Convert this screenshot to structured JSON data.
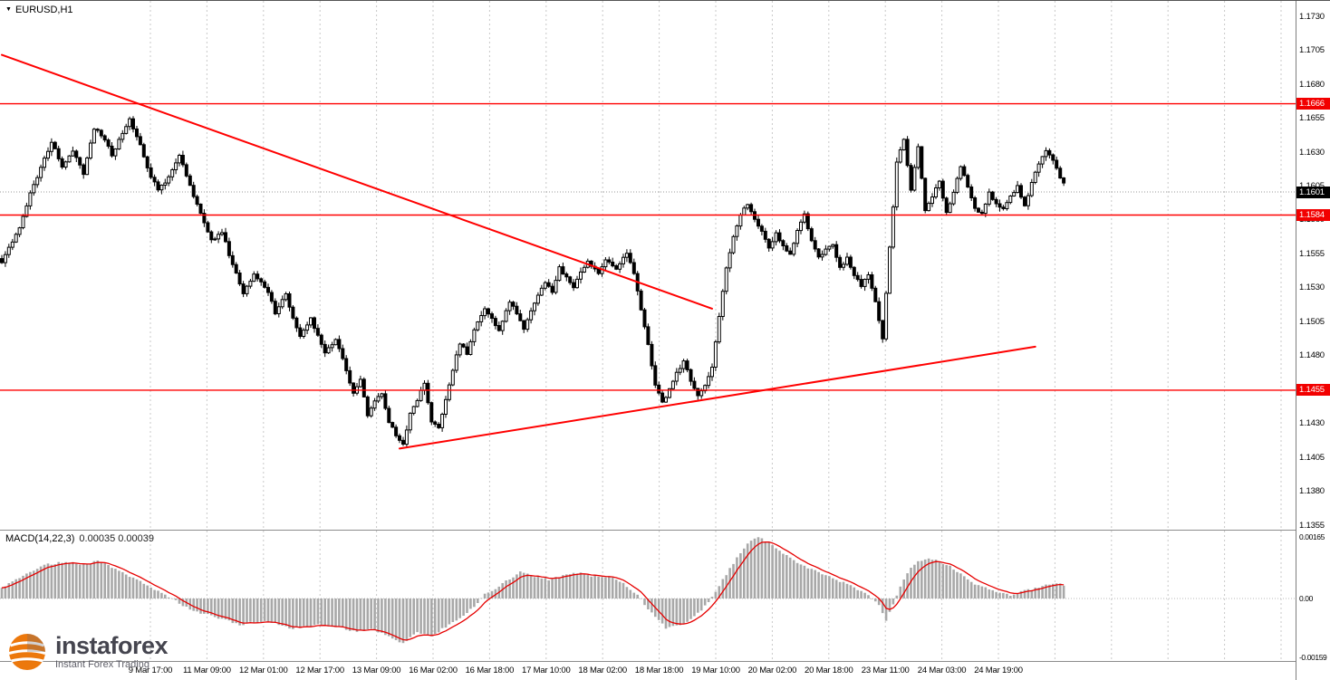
{
  "window": {
    "symbol_label": "EURUSD,H1",
    "dropdown_icon": "▼"
  },
  "watermark": {
    "brand": "instaforex",
    "tagline": "Instant Forex Trading"
  },
  "macd": {
    "label": "MACD(14,22,3)",
    "values_text": "0.00035 0.00039",
    "axis": [
      {
        "label": "0.00165",
        "value": 0.00165
      },
      {
        "label": "0.00",
        "value": 0
      },
      {
        "label": "-0.00159",
        "value": -0.00159
      }
    ]
  },
  "price_axis": {
    "ticks": [
      "1.1730",
      "1.1705",
      "1.1680",
      "1.1655",
      "1.1630",
      "1.1605",
      "1.1580",
      "1.1555",
      "1.1530",
      "1.1505",
      "1.1480",
      "1.1455",
      "1.1430",
      "1.1405",
      "1.1380",
      "1.1355"
    ],
    "levels": [
      {
        "label": "1.1666",
        "value": 1.1666
      },
      {
        "label": "1.1584",
        "value": 1.1584
      },
      {
        "label": "1.1455",
        "value": 1.1455
      }
    ],
    "current": {
      "label": "1.1601",
      "value": 1.1601
    }
  },
  "time_axis": {
    "labels": [
      "9 Mar 17:00",
      "11 Mar 09:00",
      "12 Mar 01:00",
      "12 Mar 17:00",
      "13 Mar 09:00",
      "16 Mar 02:00",
      "16 Mar 18:00",
      "17 Mar 10:00",
      "18 Mar 02:00",
      "18 Mar 18:00",
      "19 Mar 10:00",
      "20 Mar 02:00",
      "20 Mar 18:00",
      "23 Mar 11:00",
      "24 Mar 03:00",
      "24 Mar 19:00"
    ]
  },
  "chart_data": {
    "type": "candlestick",
    "symbol": "EURUSD",
    "timeframe": "H1",
    "ylim": [
      1.1355,
      1.173
    ],
    "candle_count": 300,
    "current_price": 1.1601,
    "horizontal_levels": [
      1.1666,
      1.1584,
      1.1455
    ],
    "trendlines": [
      {
        "from": [
          0,
          1.1702
        ],
        "to": [
          200,
          1.1515
        ]
      },
      {
        "from": [
          112,
          1.1412
        ],
        "to": [
          291,
          1.1487
        ]
      }
    ],
    "price_path": [
      [
        0,
        1.155
      ],
      [
        5,
        1.1575
      ],
      [
        8,
        1.16
      ],
      [
        12,
        1.1625
      ],
      [
        14,
        1.1638
      ],
      [
        17,
        1.162
      ],
      [
        20,
        1.1632
      ],
      [
        23,
        1.1615
      ],
      [
        26,
        1.1648
      ],
      [
        29,
        1.164
      ],
      [
        31,
        1.1628
      ],
      [
        34,
        1.1645
      ],
      [
        36,
        1.1655
      ],
      [
        39,
        1.1635
      ],
      [
        41,
        1.1618
      ],
      [
        44,
        1.1602
      ],
      [
        47,
        1.1612
      ],
      [
        50,
        1.1628
      ],
      [
        53,
        1.1605
      ],
      [
        55,
        1.1592
      ],
      [
        59,
        1.1565
      ],
      [
        62,
        1.1572
      ],
      [
        64,
        1.1555
      ],
      [
        68,
        1.1526
      ],
      [
        71,
        1.154
      ],
      [
        75,
        1.1528
      ],
      [
        77,
        1.1512
      ],
      [
        80,
        1.1526
      ],
      [
        82,
        1.1508
      ],
      [
        84,
        1.1495
      ],
      [
        87,
        1.1508
      ],
      [
        91,
        1.1482
      ],
      [
        94,
        1.1492
      ],
      [
        97,
        1.147
      ],
      [
        99,
        1.1452
      ],
      [
        101,
        1.1462
      ],
      [
        103,
        1.1437
      ],
      [
        105,
        1.1448
      ],
      [
        107,
        1.1452
      ],
      [
        109,
        1.1432
      ],
      [
        111,
        1.1422
      ],
      [
        113,
        1.1415
      ],
      [
        115,
        1.1438
      ],
      [
        117,
        1.1448
      ],
      [
        119,
        1.146
      ],
      [
        121,
        1.1432
      ],
      [
        123,
        1.1428
      ],
      [
        125,
        1.1448
      ],
      [
        127,
        1.147
      ],
      [
        129,
        1.149
      ],
      [
        131,
        1.1482
      ],
      [
        133,
        1.15
      ],
      [
        136,
        1.1515
      ],
      [
        138,
        1.1508
      ],
      [
        140,
        1.1498
      ],
      [
        143,
        1.152
      ],
      [
        145,
        1.1512
      ],
      [
        147,
        1.15
      ],
      [
        150,
        1.152
      ],
      [
        153,
        1.1535
      ],
      [
        155,
        1.1528
      ],
      [
        157,
        1.1545
      ],
      [
        159,
        1.1538
      ],
      [
        161,
        1.153
      ],
      [
        163,
        1.1542
      ],
      [
        165,
        1.155
      ],
      [
        168,
        1.154
      ],
      [
        170,
        1.1552
      ],
      [
        173,
        1.1545
      ],
      [
        176,
        1.1556
      ],
      [
        178,
        1.154
      ],
      [
        180,
        1.1515
      ],
      [
        182,
        1.1488
      ],
      [
        184,
        1.1458
      ],
      [
        186,
        1.1446
      ],
      [
        188,
        1.1455
      ],
      [
        190,
        1.1468
      ],
      [
        192,
        1.1476
      ],
      [
        194,
        1.1462
      ],
      [
        196,
        1.145
      ],
      [
        198,
        1.1458
      ],
      [
        200,
        1.1472
      ],
      [
        202,
        1.151
      ],
      [
        204,
        1.1545
      ],
      [
        206,
        1.1568
      ],
      [
        208,
        1.1585
      ],
      [
        210,
        1.1592
      ],
      [
        212,
        1.158
      ],
      [
        214,
        1.1572
      ],
      [
        216,
        1.156
      ],
      [
        218,
        1.157
      ],
      [
        220,
        1.1562
      ],
      [
        222,
        1.1555
      ],
      [
        224,
        1.1572
      ],
      [
        226,
        1.1585
      ],
      [
        228,
        1.1565
      ],
      [
        230,
        1.1552
      ],
      [
        232,
        1.1558
      ],
      [
        234,
        1.1562
      ],
      [
        236,
        1.1545
      ],
      [
        238,
        1.1552
      ],
      [
        240,
        1.154
      ],
      [
        242,
        1.1532
      ],
      [
        244,
        1.154
      ],
      [
        246,
        1.152
      ],
      [
        248,
        1.1492
      ],
      [
        250,
        1.156
      ],
      [
        252,
        1.1622
      ],
      [
        254,
        1.164
      ],
      [
        256,
        1.1602
      ],
      [
        258,
        1.1635
      ],
      [
        260,
        1.1588
      ],
      [
        262,
        1.1598
      ],
      [
        264,
        1.1608
      ],
      [
        266,
        1.1585
      ],
      [
        268,
        1.16
      ],
      [
        270,
        1.162
      ],
      [
        272,
        1.1605
      ],
      [
        274,
        1.1588
      ],
      [
        276,
        1.1585
      ],
      [
        278,
        1.16
      ],
      [
        280,
        1.1592
      ],
      [
        282,
        1.1588
      ],
      [
        284,
        1.1598
      ],
      [
        286,
        1.1605
      ],
      [
        288,
        1.159
      ],
      [
        290,
        1.1608
      ],
      [
        292,
        1.1622
      ],
      [
        294,
        1.1632
      ],
      [
        296,
        1.1625
      ],
      [
        298,
        1.1612
      ],
      [
        300,
        1.1601
      ]
    ],
    "macd": {
      "params": "14,22,3",
      "current_macd": 0.00035,
      "current_signal": 0.00039,
      "ylim": [
        -0.00159,
        0.00165
      ],
      "macd_path": [
        [
          0,
          0.0003
        ],
        [
          6,
          0.0006
        ],
        [
          12,
          0.0009
        ],
        [
          18,
          0.001
        ],
        [
          22,
          0.0009
        ],
        [
          27,
          0.001
        ],
        [
          32,
          0.0008
        ],
        [
          38,
          0.0005
        ],
        [
          44,
          0.0002
        ],
        [
          48,
          0
        ],
        [
          53,
          -0.0003
        ],
        [
          60,
          -0.0005
        ],
        [
          67,
          -0.0007
        ],
        [
          74,
          -0.0006
        ],
        [
          82,
          -0.0008
        ],
        [
          89,
          -0.0007
        ],
        [
          96,
          -0.0008
        ],
        [
          100,
          -0.0009
        ],
        [
          104,
          -0.0008
        ],
        [
          109,
          -0.001
        ],
        [
          113,
          -0.0012
        ],
        [
          117,
          -0.0009
        ],
        [
          121,
          -0.001
        ],
        [
          126,
          -0.0007
        ],
        [
          131,
          -0.0004
        ],
        [
          136,
          0.0001
        ],
        [
          141,
          0.0004
        ],
        [
          146,
          0.0007
        ],
        [
          150,
          0.0006
        ],
        [
          154,
          0.0005
        ],
        [
          158,
          0.0006
        ],
        [
          162,
          0.0007
        ],
        [
          166,
          0.0006
        ],
        [
          171,
          0.0006
        ],
        [
          175,
          0.0004
        ],
        [
          179,
          0.0001
        ],
        [
          183,
          -0.0004
        ],
        [
          187,
          -0.0008
        ],
        [
          191,
          -0.0007
        ],
        [
          195,
          -0.0005
        ],
        [
          199,
          -0.0001
        ],
        [
          203,
          0.0005
        ],
        [
          207,
          0.0011
        ],
        [
          210,
          0.0015
        ],
        [
          213,
          0.00165
        ],
        [
          216,
          0.0015
        ],
        [
          220,
          0.0012
        ],
        [
          225,
          0.0009
        ],
        [
          230,
          0.0007
        ],
        [
          235,
          0.0005
        ],
        [
          240,
          0.0003
        ],
        [
          244,
          0.0001
        ],
        [
          247,
          -0.0002
        ],
        [
          249,
          -0.0006
        ],
        [
          252,
          0.0001
        ],
        [
          255,
          0.0007
        ],
        [
          258,
          0.001
        ],
        [
          261,
          0.0011
        ],
        [
          264,
          0.001
        ],
        [
          268,
          0.0008
        ],
        [
          272,
          0.0005
        ],
        [
          276,
          0.0003
        ],
        [
          280,
          0.0002
        ],
        [
          284,
          0.0001
        ],
        [
          288,
          0.0002
        ],
        [
          292,
          0.0003
        ],
        [
          296,
          0.0004
        ],
        [
          300,
          0.00035
        ]
      ]
    },
    "colors": {
      "level_line": "#ff0000",
      "trend_line": "#ff0000",
      "signal_line": "#e60000",
      "histogram": "#a8a8a8",
      "candle": "#000000",
      "current_badge": "#000000",
      "level_badge": "#f20000"
    }
  }
}
